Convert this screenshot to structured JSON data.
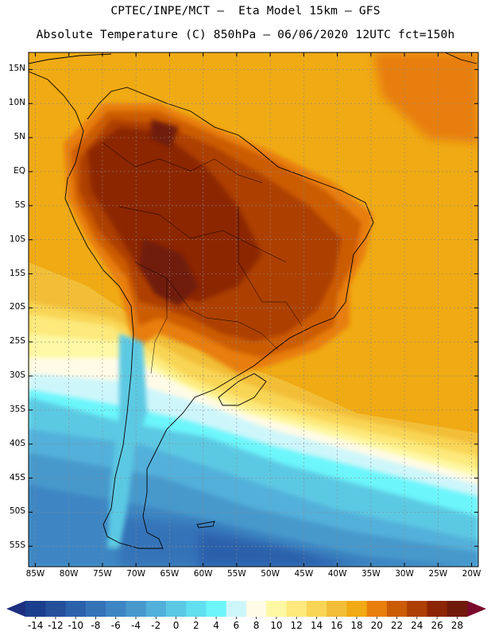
{
  "header": {
    "line1": "CPTEC/INPE/MCT –  Eta Model 15km – GFS",
    "line2": "Absolute Temperature (C) 850hPa – 06/06/2020 12UTC fct=150h"
  },
  "map": {
    "lat_labels": [
      "15N",
      "10N",
      "5N",
      "EQ",
      "5S",
      "10S",
      "15S",
      "20S",
      "25S",
      "30S",
      "35S",
      "40S",
      "45S",
      "50S",
      "55S"
    ],
    "lon_labels": [
      "85W",
      "80W",
      "75W",
      "70W",
      "65W",
      "60W",
      "55W",
      "50W",
      "45W",
      "40W",
      "35W",
      "30W",
      "25W",
      "20W"
    ],
    "lat_values": [
      15,
      10,
      5,
      0,
      -5,
      -10,
      -15,
      -20,
      -25,
      -30,
      -35,
      -40,
      -45,
      -50,
      -55
    ],
    "lon_values": [
      -85,
      -80,
      -75,
      -70,
      -65,
      -60,
      -55,
      -50,
      -45,
      -40,
      -35,
      -30,
      -25,
      -20
    ],
    "lon_range": [
      -86,
      -19
    ],
    "lat_range": [
      17.5,
      -58
    ]
  },
  "colorbar": {
    "labels": [
      "-14",
      "-12",
      "-10",
      "-8",
      "-6",
      "-4",
      "-2",
      "0",
      "2",
      "4",
      "6",
      "8",
      "10",
      "12",
      "14",
      "16",
      "18",
      "20",
      "22",
      "24",
      "26",
      "28"
    ],
    "colors": [
      "#1b3f8c",
      "#234f9b",
      "#2b60ab",
      "#3473b8",
      "#3d86c3",
      "#4799cc",
      "#52b0da",
      "#5cc9e3",
      "#62dfef",
      "#6cf6fb",
      "#cdf6fb",
      "#fffbe6",
      "#fef8a4",
      "#fde97c",
      "#f9d555",
      "#f2be38",
      "#f0aa14",
      "#e87e0b",
      "#cc5b05",
      "#ad3f04",
      "#8c2503",
      "#701a0a"
    ],
    "low_color": "#1e2f80",
    "high_color": "#7a0a2a"
  }
}
